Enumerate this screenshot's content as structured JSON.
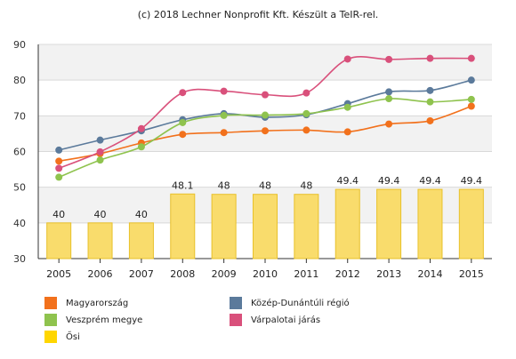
{
  "credit": "(c) 2018 Lechner Nonprofit Kft. Készült a TeIR-rel.",
  "chart_data": {
    "type": "bar+line",
    "categories": [
      "2005",
      "2006",
      "2007",
      "2008",
      "2009",
      "2010",
      "2011",
      "2012",
      "2013",
      "2014",
      "2015"
    ],
    "ylim": [
      30,
      90
    ],
    "yticks": [
      30,
      40,
      50,
      60,
      70,
      80,
      90
    ],
    "grid": true,
    "legend_position": "bottom",
    "bars": {
      "name": "Ősi",
      "color": "#f9dc6c",
      "edge": "#e8c12a",
      "values": [
        40,
        40,
        40,
        48.1,
        48,
        48,
        48,
        49.4,
        49.4,
        49.4,
        49.4
      ],
      "labels": [
        "40",
        "40",
        "40",
        "48.1",
        "48",
        "48",
        "48",
        "49.4",
        "49.4",
        "49.4",
        "49.4"
      ]
    },
    "series": [
      {
        "name": "Magyarország",
        "color": "#f2711c",
        "values": [
          57.3,
          59.4,
          62.4,
          64.8,
          65.3,
          65.8,
          66.0,
          65.5,
          67.7,
          68.6,
          72.7
        ]
      },
      {
        "name": "Közép-Dunántúli régió",
        "color": "#5b7a9b",
        "values": [
          60.4,
          63.2,
          65.8,
          68.9,
          70.6,
          69.6,
          70.3,
          73.4,
          76.7,
          77.1,
          80.0
        ]
      },
      {
        "name": "Veszprém megye",
        "color": "#8fc34e",
        "values": [
          52.8,
          57.6,
          61.3,
          68.1,
          70.1,
          70.2,
          70.6,
          72.4,
          74.8,
          73.9,
          74.6
        ]
      },
      {
        "name": "Várpalotai járás",
        "color": "#d9507b",
        "values": [
          55.3,
          59.9,
          66.4,
          76.5,
          76.9,
          75.9,
          76.4,
          85.9,
          85.8,
          86.1,
          86.1
        ]
      }
    ],
    "legend": [
      {
        "label": "Magyarország",
        "color": "#f2711c"
      },
      {
        "label": "Közép-Dunántúli régió",
        "color": "#5b7a9b"
      },
      {
        "label": "Veszprém megye",
        "color": "#8fc34e"
      },
      {
        "label": "Várpalotai járás",
        "color": "#d9507b"
      },
      {
        "label": "Ősi",
        "color": "#ffd600"
      }
    ]
  }
}
